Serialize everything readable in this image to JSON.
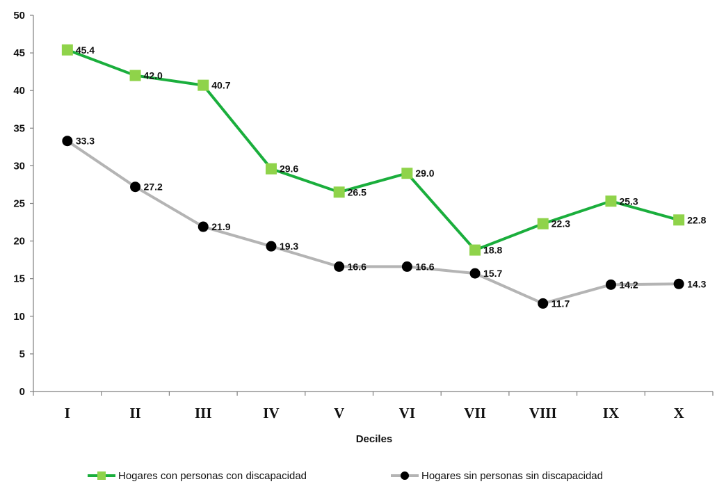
{
  "chart_data": {
    "type": "line",
    "title": "",
    "xlabel": "Deciles",
    "ylabel": "",
    "ylim": [
      0,
      50
    ],
    "yticks": [
      "0",
      "5",
      "10",
      "15",
      "20",
      "25",
      "30",
      "35",
      "40",
      "45",
      "50"
    ],
    "categories": [
      "I",
      "II",
      "III",
      "IV",
      "V",
      "VI",
      "VII",
      "VIII",
      "IX",
      "X"
    ],
    "grid": false,
    "legend_position": "bottom",
    "series": [
      {
        "name": "Hogares con personas con discapacidad",
        "values": [
          45.4,
          42.0,
          40.7,
          29.6,
          26.5,
          29.0,
          18.8,
          22.3,
          25.3,
          22.8
        ],
        "labels": [
          "45.4",
          "42.0",
          "40.7",
          "29.6",
          "26.5",
          "29.0",
          "18.8",
          "22.3",
          "25.3",
          "22.8"
        ],
        "line_color": "#1aae3c",
        "marker_color": "#8fd34a",
        "marker": "square"
      },
      {
        "name": "Hogares sin personas sin discapacidad",
        "values": [
          33.3,
          27.2,
          21.9,
          19.3,
          16.6,
          16.6,
          15.7,
          11.7,
          14.2,
          14.3
        ],
        "labels": [
          "33.3",
          "27.2",
          "21.9",
          "19.3",
          "16.6",
          "16.6",
          "15.7",
          "11.7",
          "14.2",
          "14.3"
        ],
        "line_color": "#b4b4b4",
        "marker_color": "#000000",
        "marker": "circle"
      }
    ]
  }
}
